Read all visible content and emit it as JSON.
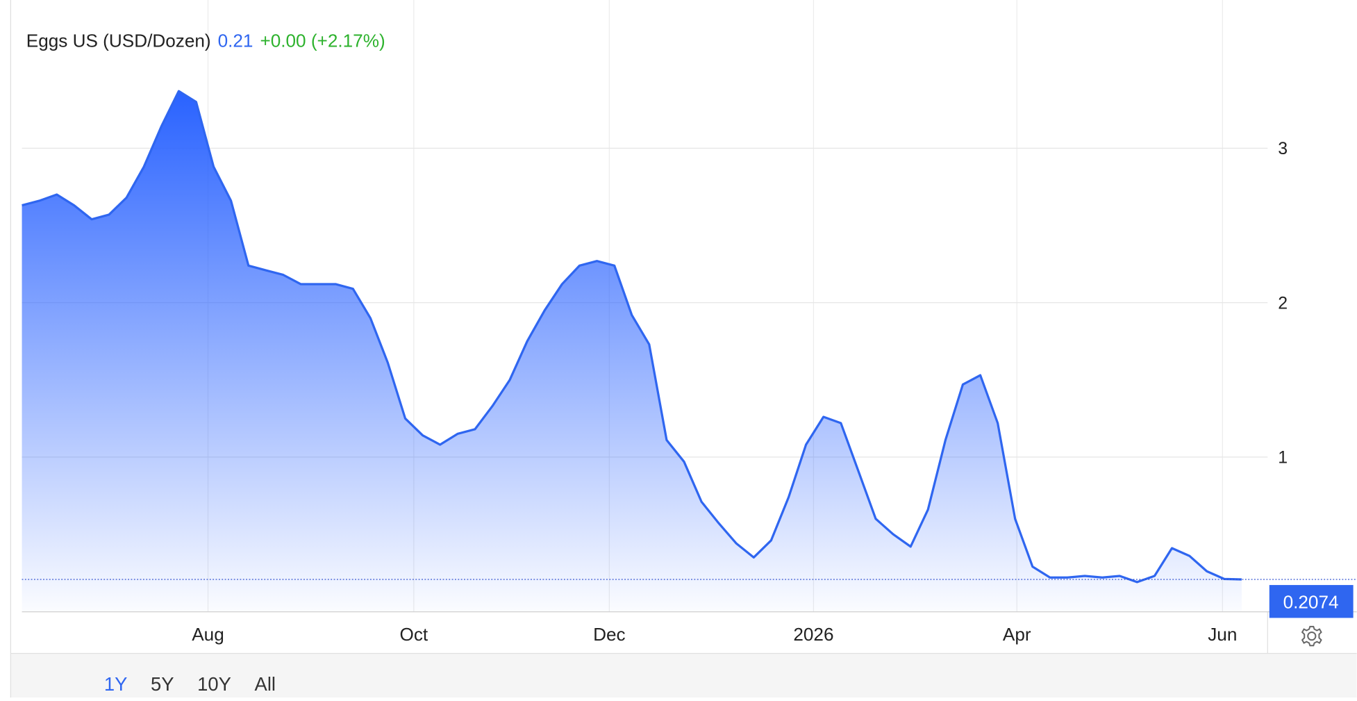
{
  "chart_data": {
    "type": "area",
    "title": "Eggs US (USD/Dozen)",
    "price": "0.21",
    "change": "+0.00 (+2.17%)",
    "series": [
      {
        "name": "Eggs US",
        "color": "#2f66f0",
        "values": [
          2.63,
          2.66,
          2.7,
          2.63,
          2.54,
          2.57,
          2.68,
          2.88,
          3.14,
          3.37,
          3.3,
          2.88,
          2.66,
          2.24,
          2.21,
          2.18,
          2.12,
          2.12,
          2.12,
          2.09,
          1.9,
          1.61,
          1.25,
          1.14,
          1.08,
          1.15,
          1.18,
          1.33,
          1.5,
          1.75,
          1.95,
          2.12,
          2.24,
          2.27,
          2.24,
          1.92,
          1.73,
          1.11,
          0.97,
          0.71,
          0.57,
          0.44,
          0.35,
          0.46,
          0.74,
          1.08,
          1.26,
          1.22,
          0.91,
          0.6,
          0.5,
          0.42,
          0.66,
          1.11,
          1.47,
          1.53,
          1.22,
          0.6,
          0.29,
          0.22,
          0.22,
          0.23,
          0.22,
          0.23,
          0.19,
          0.23,
          0.41,
          0.36,
          0.26,
          0.21,
          0.2074
        ]
      }
    ],
    "last_label": "0.2074",
    "xlim": [
      0,
      70
    ],
    "xticks": [
      {
        "value": 10.68,
        "label": "Aug"
      },
      {
        "value": 22.49,
        "label": "Oct"
      },
      {
        "value": 33.71,
        "label": "Dec"
      },
      {
        "value": 45.43,
        "label": "2026"
      },
      {
        "value": 57.1,
        "label": "Apr"
      },
      {
        "value": 68.9,
        "label": "Jun"
      }
    ],
    "ylim": [
      0,
      3.98
    ],
    "yticks": [
      1,
      2,
      3
    ],
    "grid": true,
    "ranges": [
      "1Y",
      "5Y",
      "10Y",
      "All"
    ],
    "active_range": "1Y"
  }
}
